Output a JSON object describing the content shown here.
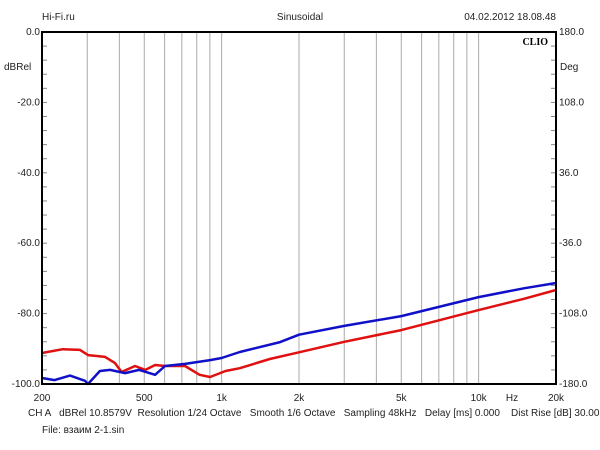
{
  "header": {
    "left": "Hi-Fi.ru",
    "center": "Sinusoidal",
    "right": "04.02.2012 18.08.48"
  },
  "brand": "CLIO",
  "footer": {
    "info": "CH A   dBRel 10.8579V  Resolution 1/24 Octave   Smooth 1/6 Octave   Sampling 48kHz   Delay [ms] 0.000    Dist Rise [dB] 30.00",
    "file": "File: взаим 2-1.sin"
  },
  "chart_data": {
    "type": "line",
    "title": "Sinusoidal",
    "xlabel": "Hz",
    "ylabel": "dBRel",
    "y2label": "Deg",
    "xscale": "log",
    "xlim": [
      200,
      20000
    ],
    "ylim": [
      -100,
      0
    ],
    "y2lim": [
      -180,
      180
    ],
    "x_ticks": [
      {
        "v": 200,
        "label": "200"
      },
      {
        "v": 500,
        "label": "500"
      },
      {
        "v": 1000,
        "label": "1k"
      },
      {
        "v": 2000,
        "label": "2k"
      },
      {
        "v": 5000,
        "label": "5k"
      },
      {
        "v": 10000,
        "label": "10k"
      },
      {
        "v": 20000,
        "label": "20k"
      }
    ],
    "y_ticks": [
      "0.0",
      "-20.0",
      "-40.0",
      "-60.0",
      "-80.0",
      "-100.0"
    ],
    "y2_ticks": [
      "180.0",
      "108.0",
      "36.0",
      "-36.0",
      "-108.0",
      "-180.0"
    ],
    "grid": true,
    "series": [
      {
        "name": "red",
        "color": "#e01010",
        "points": [
          [
            200,
            -91.2
          ],
          [
            241,
            -90.1
          ],
          [
            281,
            -90.3
          ],
          [
            302,
            -91.8
          ],
          [
            352,
            -92.3
          ],
          [
            384,
            -94.0
          ],
          [
            408,
            -96.6
          ],
          [
            460,
            -94.9
          ],
          [
            505,
            -96.0
          ],
          [
            551,
            -94.6
          ],
          [
            602,
            -94.9
          ],
          [
            720,
            -94.9
          ],
          [
            821,
            -97.4
          ],
          [
            902,
            -98.0
          ],
          [
            1035,
            -96.3
          ],
          [
            1177,
            -95.5
          ],
          [
            1540,
            -92.9
          ],
          [
            2000,
            -91.0
          ],
          [
            3000,
            -88.0
          ],
          [
            5000,
            -84.7
          ],
          [
            10000,
            -79.0
          ],
          [
            15000,
            -75.8
          ],
          [
            20000,
            -73.3
          ]
        ]
      },
      {
        "name": "blue",
        "color": "#1010c8",
        "points": [
          [
            200,
            -98.3
          ],
          [
            224,
            -98.9
          ],
          [
            257,
            -97.6
          ],
          [
            294,
            -99.1
          ],
          [
            302,
            -100.0
          ],
          [
            336,
            -96.3
          ],
          [
            368,
            -96.0
          ],
          [
            421,
            -96.9
          ],
          [
            478,
            -96.0
          ],
          [
            551,
            -97.4
          ],
          [
            602,
            -94.9
          ],
          [
            720,
            -94.3
          ],
          [
            902,
            -93.2
          ],
          [
            1000,
            -92.6
          ],
          [
            1177,
            -90.9
          ],
          [
            1688,
            -88.1
          ],
          [
            2000,
            -86.0
          ],
          [
            3000,
            -83.5
          ],
          [
            5000,
            -80.7
          ],
          [
            10000,
            -75.3
          ],
          [
            15000,
            -72.8
          ],
          [
            20000,
            -71.3
          ]
        ]
      }
    ]
  }
}
